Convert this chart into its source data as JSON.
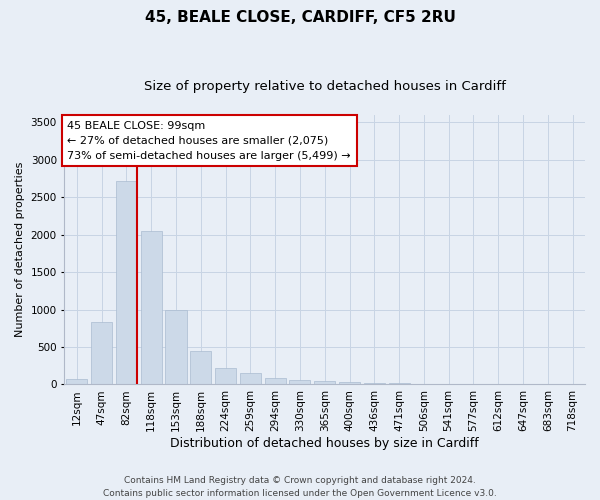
{
  "title1": "45, BEALE CLOSE, CARDIFF, CF5 2RU",
  "title2": "Size of property relative to detached houses in Cardiff",
  "xlabel": "Distribution of detached houses by size in Cardiff",
  "ylabel": "Number of detached properties",
  "categories": [
    "12sqm",
    "47sqm",
    "82sqm",
    "118sqm",
    "153sqm",
    "188sqm",
    "224sqm",
    "259sqm",
    "294sqm",
    "330sqm",
    "365sqm",
    "400sqm",
    "436sqm",
    "471sqm",
    "506sqm",
    "541sqm",
    "577sqm",
    "612sqm",
    "647sqm",
    "683sqm",
    "718sqm"
  ],
  "values": [
    75,
    840,
    2720,
    2050,
    1000,
    450,
    220,
    150,
    80,
    55,
    40,
    30,
    20,
    15,
    10,
    8,
    5,
    4,
    3,
    3,
    2
  ],
  "bar_color": "#ccd9e8",
  "bar_edge_color": "#aabbd0",
  "vline_x_index": 2.43,
  "vline_color": "#cc0000",
  "annotation_text": "45 BEALE CLOSE: 99sqm\n← 27% of detached houses are smaller (2,075)\n73% of semi-detached houses are larger (5,499) →",
  "annotation_box_facecolor": "#ffffff",
  "annotation_box_edgecolor": "#cc0000",
  "ylim": [
    0,
    3600
  ],
  "yticks": [
    0,
    500,
    1000,
    1500,
    2000,
    2500,
    3000,
    3500
  ],
  "grid_color": "#c8d4e4",
  "background_color": "#e8eef6",
  "footnote": "Contains HM Land Registry data © Crown copyright and database right 2024.\nContains public sector information licensed under the Open Government Licence v3.0.",
  "title1_fontsize": 11,
  "title2_fontsize": 9.5,
  "xlabel_fontsize": 9,
  "ylabel_fontsize": 8,
  "tick_fontsize": 7.5,
  "annot_fontsize": 8,
  "footnote_fontsize": 6.5
}
